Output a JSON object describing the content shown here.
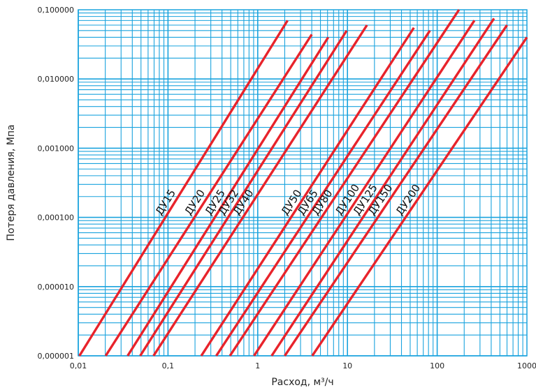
{
  "chart_data": {
    "type": "line",
    "title": "",
    "xlabel": "Расход, м³/ч",
    "ylabel": "Потеря давления, Мпа",
    "x_scale": "log",
    "y_scale": "log",
    "xlim": [
      0.01,
      1000
    ],
    "ylim": [
      1e-06,
      0.1
    ],
    "grid": true,
    "x_ticks": [
      {
        "value": 0.01,
        "label": "0,01"
      },
      {
        "value": 0.1,
        "label": "0,1"
      },
      {
        "value": 1,
        "label": "1"
      },
      {
        "value": 10,
        "label": "10"
      },
      {
        "value": 100,
        "label": "100"
      },
      {
        "value": 1000,
        "label": "1000"
      }
    ],
    "y_ticks": [
      {
        "value": 1e-06,
        "label": "0,000001"
      },
      {
        "value": 1e-05,
        "label": "0,000010"
      },
      {
        "value": 0.0001,
        "label": "0,000100"
      },
      {
        "value": 0.001,
        "label": "0,001000"
      },
      {
        "value": 0.01,
        "label": "0,010000"
      },
      {
        "value": 0.1,
        "label": "0,100000"
      }
    ],
    "series": [
      {
        "name": "ДУ15",
        "x": [
          0.0103,
          2.15
        ],
        "y": [
          1e-06,
          0.07
        ]
      },
      {
        "name": "ДУ20",
        "x": [
          0.0202,
          4.0
        ],
        "y": [
          1e-06,
          0.044
        ]
      },
      {
        "name": "ДУ25",
        "x": [
          0.0355,
          6.1
        ],
        "y": [
          1e-06,
          0.04
        ]
      },
      {
        "name": "ДУ32",
        "x": [
          0.049,
          9.8
        ],
        "y": [
          1e-06,
          0.05
        ]
      },
      {
        "name": "ДУ40",
        "x": [
          0.069,
          16.5
        ],
        "y": [
          1e-06,
          0.06
        ]
      },
      {
        "name": "ДУ50",
        "x": [
          0.235,
          55
        ],
        "y": [
          1e-06,
          0.055
        ]
      },
      {
        "name": "ДУ65",
        "x": [
          0.345,
          83
        ],
        "y": [
          1e-06,
          0.05
        ]
      },
      {
        "name": "ДУ80",
        "x": [
          0.49,
          175
        ],
        "y": [
          1e-06,
          0.1
        ]
      },
      {
        "name": "ДУ100",
        "x": [
          0.91,
          260
        ],
        "y": [
          1e-06,
          0.07
        ]
      },
      {
        "name": "ДУ125",
        "x": [
          1.43,
          430
        ],
        "y": [
          1e-06,
          0.075
        ]
      },
      {
        "name": "ДУ150",
        "x": [
          2.0,
          600
        ],
        "y": [
          1e-06,
          0.06
        ]
      },
      {
        "name": "ДУ200",
        "x": [
          4.05,
          1000
        ],
        "y": [
          1e-06,
          0.04
        ]
      }
    ],
    "line_color": "#e8232b",
    "grid_color": "#1aa3de",
    "label_color": "#111111"
  }
}
